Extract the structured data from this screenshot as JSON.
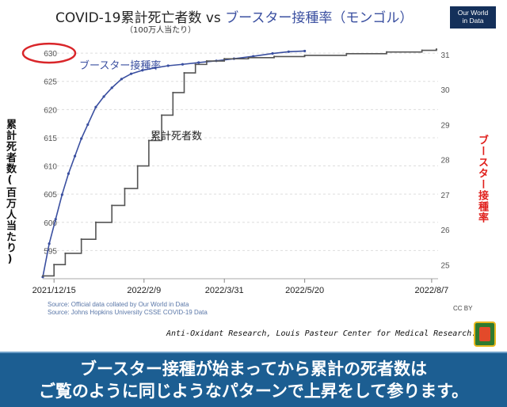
{
  "header": {
    "title_main": "COVID-19累計死亡者数 vs ",
    "title_highlight": "ブースター接種率",
    "title_country": "（モンゴル）",
    "subtitle": "（100万人当たり）",
    "logo_line1": "Our World",
    "logo_line2": "in Data"
  },
  "axes": {
    "left_label": "累計死者数(百万人当たり)",
    "right_label": "ブースター接種率"
  },
  "footer": {
    "source1": "Source: Official data collated by Our World in Data",
    "source2": "Source: Johns Hopkins University CSSE COVID-19 Data",
    "license": "CC BY",
    "credit": "Anti-Oxidant Research, Louis Pasteur Center for Medical Research."
  },
  "banner": {
    "line1": "ブースター接種が始まってから累計の死者数は",
    "line2": "ご覧のように同じようなパターンで上昇をして参ります。"
  },
  "colors": {
    "booster": "#3a4fa0",
    "deaths": "#555555",
    "right_axis_label": "#e0201c",
    "highlight_ellipse": "#d9262a",
    "banner_bg": "#1c5e92"
  },
  "chart_data": {
    "type": "line",
    "x_ticks": [
      "2021/12/15",
      "2022/2/9",
      "2022/3/31",
      "2022/5/20",
      "2022/8/7"
    ],
    "y_left_ticks": [
      595,
      600,
      605,
      610,
      615,
      620,
      625,
      630
    ],
    "y_left_range": [
      590,
      631
    ],
    "y_right_ticks": [
      25,
      26,
      27,
      28,
      29,
      30,
      31
    ],
    "y_right_range": [
      24.6,
      31.2
    ],
    "highlighted_tick": 630,
    "grid": true,
    "series": [
      {
        "name": "ブースター接種率",
        "axis": "right",
        "x": [
          "2021-12-08",
          "2021-12-12",
          "2021-12-16",
          "2021-12-20",
          "2021-12-24",
          "2021-12-28",
          "2022-01-01",
          "2022-01-05",
          "2022-01-10",
          "2022-01-15",
          "2022-01-20",
          "2022-01-26",
          "2022-02-01",
          "2022-02-08",
          "2022-02-16",
          "2022-02-24",
          "2022-03-05",
          "2022-03-15",
          "2022-03-26",
          "2022-04-06",
          "2022-04-18",
          "2022-04-30",
          "2022-05-10",
          "2022-05-20"
        ],
        "values": [
          24.65,
          25.6,
          26.3,
          27.0,
          27.6,
          28.1,
          28.6,
          29.0,
          29.5,
          29.8,
          30.05,
          30.3,
          30.45,
          30.55,
          30.62,
          30.68,
          30.72,
          30.77,
          30.82,
          30.88,
          30.95,
          31.03,
          31.08,
          31.1
        ]
      },
      {
        "name": "累計死者数",
        "axis": "left",
        "x": [
          "2021-12-08",
          "2021-12-15",
          "2021-12-22",
          "2022-01-01",
          "2022-01-10",
          "2022-01-20",
          "2022-01-28",
          "2022-02-05",
          "2022-02-12",
          "2022-02-20",
          "2022-02-27",
          "2022-03-06",
          "2022-03-13",
          "2022-03-20",
          "2022-03-31",
          "2022-04-15",
          "2022-05-01",
          "2022-05-20",
          "2022-06-15",
          "2022-07-10",
          "2022-08-01",
          "2022-08-10"
        ],
        "values": [
          590.5,
          592.5,
          594.5,
          597.0,
          600.0,
          603.0,
          606.0,
          610.0,
          614.5,
          619.0,
          623.0,
          626.5,
          628.0,
          628.6,
          629.0,
          629.2,
          629.4,
          629.6,
          629.9,
          630.2,
          630.5,
          630.7
        ]
      }
    ]
  }
}
